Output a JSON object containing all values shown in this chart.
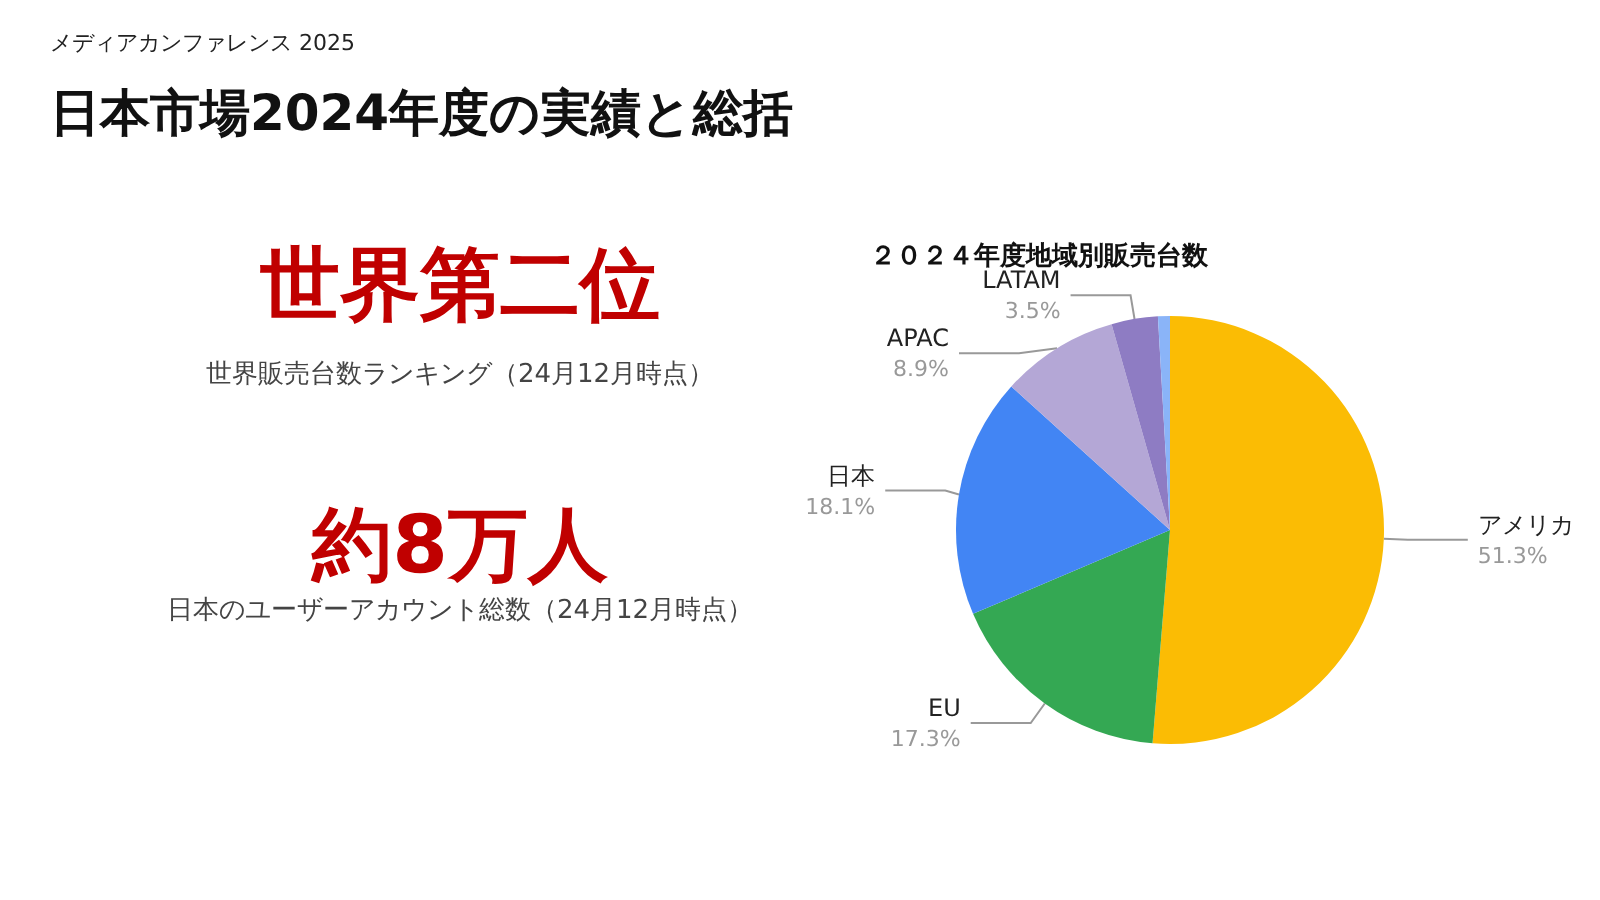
{
  "chart_data": [
    {
      "type": "other",
      "title": "日本市場2024年度の実績と総括",
      "subtitle": "メディアカンファレンス 2025",
      "annotations": [
        "世界第二位",
        "世界販売台数ランキング（24月12月時点）",
        "約8万人",
        "日本のユーザーアカウント総数（24月12月時点）"
      ]
    },
    {
      "type": "pie",
      "title": "２０２４年度地域別販売台数",
      "categories": [
        "アメリカ",
        "EU",
        "日本",
        "APAC",
        "LATAM",
        null
      ],
      "values": [
        51.3,
        17.3,
        18.1,
        8.9,
        3.5,
        0.9
      ],
      "colors": [
        "#fbbc04",
        "#34a853",
        "#4285f4",
        "#b4a7d6",
        "#8e7cc3",
        "#8ab4f8"
      ],
      "value_labels": [
        "51.3%",
        "17.3%",
        "18.1%",
        "8.9%",
        "3.5%",
        null
      ]
    }
  ]
}
